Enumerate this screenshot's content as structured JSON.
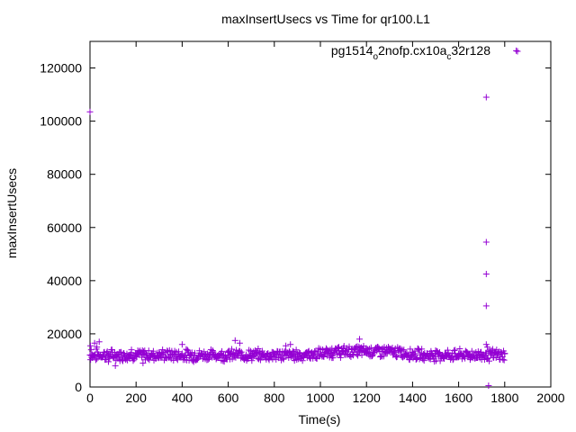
{
  "chart_data": {
    "type": "scatter",
    "title": "maxInsertUsecs vs Time for qr100.L1",
    "xlabel": "Time(s)",
    "ylabel": "maxInsertUsecs",
    "xlim": [
      0,
      2000
    ],
    "ylim": [
      0,
      130000
    ],
    "x_ticks": [
      "0",
      "200",
      "400",
      "600",
      "800",
      "1000",
      "1200",
      "1400",
      "1600",
      "1800",
      "2000"
    ],
    "y_ticks": [
      "0",
      "20000",
      "40000",
      "60000",
      "80000",
      "100000",
      "120000"
    ],
    "grid": false,
    "legend_position": "top-right",
    "legend": {
      "base": "pg1514",
      "sub1": "o",
      "mid": "2nofp.cx10a",
      "sub2": "c",
      "tail": "32r128"
    },
    "series": [
      {
        "color": "#9400d3",
        "marker": "plus",
        "baseline_x_range": [
          0,
          1800
        ],
        "baseline_y_typical": 12000,
        "baseline_y_spread": [
          9000,
          15500
        ],
        "points": [
          [
            0,
            103500
          ],
          [
            2,
            15500
          ],
          [
            5,
            14000
          ],
          [
            10,
            11000
          ],
          [
            20,
            16500
          ],
          [
            30,
            15000
          ],
          [
            40,
            17000
          ],
          [
            60,
            13000
          ],
          [
            80,
            9500
          ],
          [
            100,
            11500
          ],
          [
            110,
            8000
          ],
          [
            130,
            10500
          ],
          [
            150,
            12000
          ],
          [
            180,
            14000
          ],
          [
            200,
            12500
          ],
          [
            230,
            9000
          ],
          [
            260,
            11500
          ],
          [
            300,
            13000
          ],
          [
            350,
            12000
          ],
          [
            400,
            16000
          ],
          [
            420,
            11000
          ],
          [
            450,
            9500
          ],
          [
            500,
            12000
          ],
          [
            550,
            11500
          ],
          [
            600,
            12000
          ],
          [
            630,
            17500
          ],
          [
            650,
            16500
          ],
          [
            700,
            12000
          ],
          [
            750,
            11500
          ],
          [
            800,
            12500
          ],
          [
            850,
            15500
          ],
          [
            870,
            16000
          ],
          [
            900,
            12500
          ],
          [
            950,
            13500
          ],
          [
            1000,
            14000
          ],
          [
            1050,
            14500
          ],
          [
            1080,
            15000
          ],
          [
            1100,
            13500
          ],
          [
            1150,
            14500
          ],
          [
            1170,
            18000
          ],
          [
            1200,
            14500
          ],
          [
            1250,
            15000
          ],
          [
            1300,
            14500
          ],
          [
            1350,
            13500
          ],
          [
            1400,
            13000
          ],
          [
            1450,
            12000
          ],
          [
            1500,
            11500
          ],
          [
            1550,
            12000
          ],
          [
            1600,
            12500
          ],
          [
            1650,
            12000
          ],
          [
            1680,
            11000
          ],
          [
            1700,
            12000
          ],
          [
            1720,
            109000
          ],
          [
            1720,
            54500
          ],
          [
            1720,
            42500
          ],
          [
            1720,
            30500
          ],
          [
            1720,
            16000
          ],
          [
            1725,
            15000
          ],
          [
            1730,
            500
          ],
          [
            1750,
            12000
          ],
          [
            1780,
            11500
          ],
          [
            1800,
            12500
          ],
          [
            1850,
            126500
          ]
        ]
      }
    ]
  }
}
